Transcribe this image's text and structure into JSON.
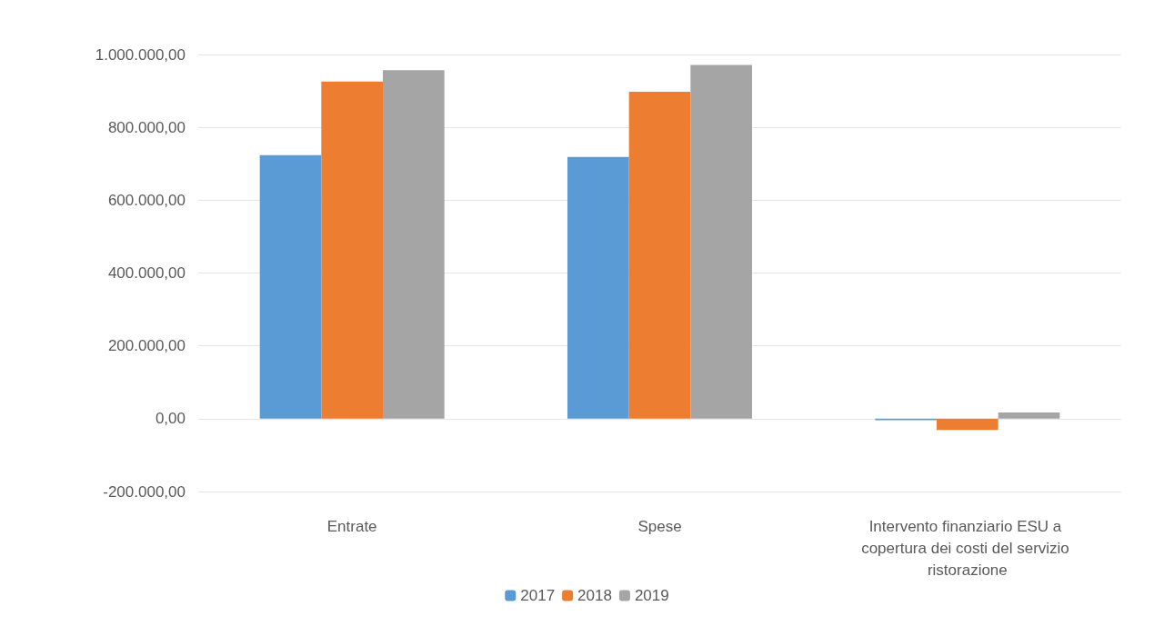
{
  "chart_data": {
    "type": "bar",
    "categories": [
      "Entrate",
      "Spese",
      "Intervento finanziario ESU a copertura dei costi del servizio ristorazione"
    ],
    "series": [
      {
        "name": "2017",
        "color": "#5b9bd5",
        "values": [
          724000,
          719000,
          -4000
        ]
      },
      {
        "name": "2018",
        "color": "#ed7d31",
        "values": [
          926000,
          898000,
          -31000
        ]
      },
      {
        "name": "2019",
        "color": "#a5a5a5",
        "values": [
          957000,
          971000,
          17000
        ]
      }
    ],
    "ylim": [
      -200000,
      1000000
    ],
    "yticks": [
      {
        "value": -200000,
        "label": "-200.000,00"
      },
      {
        "value": 0,
        "label": "0,00"
      },
      {
        "value": 200000,
        "label": "200.000,00"
      },
      {
        "value": 400000,
        "label": "400.000,00"
      },
      {
        "value": 600000,
        "label": "600.000,00"
      },
      {
        "value": 800000,
        "label": "800.000,00"
      },
      {
        "value": 1000000,
        "label": "1.000.000,00"
      }
    ],
    "grid": "y",
    "legend": "bottom"
  }
}
